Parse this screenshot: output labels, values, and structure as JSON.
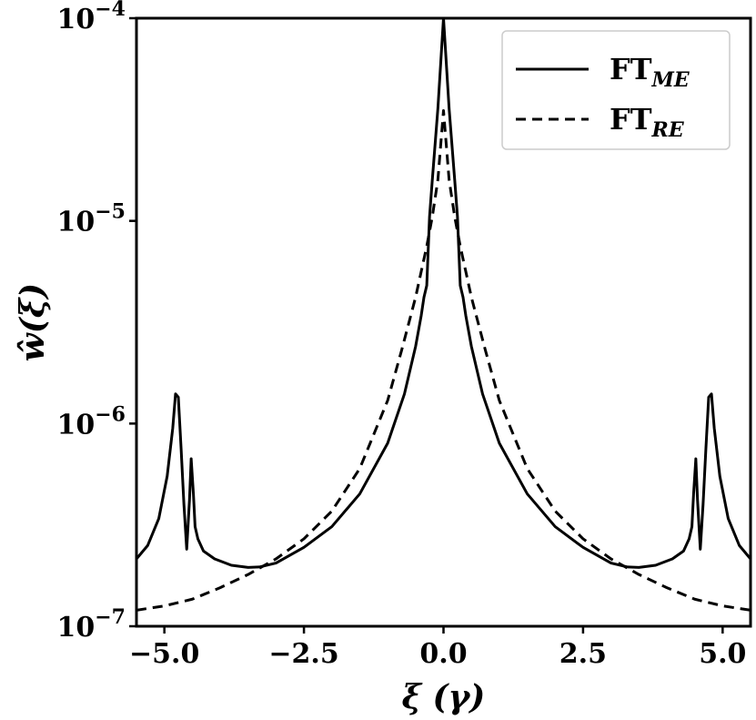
{
  "chart_data": {
    "type": "line",
    "title": "",
    "xlabel": "ξ (γ)",
    "ylabel": "ŵ(ξ)",
    "xlim": [
      -5.5,
      5.5
    ],
    "ylim": [
      1e-07,
      0.0001
    ],
    "yscale": "log",
    "grid": false,
    "legend_position": "top-right",
    "x_ticks": [
      -5.0,
      -2.5,
      0.0,
      2.5,
      5.0
    ],
    "x_tick_labels": [
      "−5.0",
      "−2.5",
      "0.0",
      "2.5",
      "5.0"
    ],
    "y_ticks": [
      1e-07,
      1e-06,
      1e-05,
      0.0001
    ],
    "y_tick_labels": [
      {
        "base": "10",
        "exp": "−7"
      },
      {
        "base": "10",
        "exp": "−6"
      },
      {
        "base": "10",
        "exp": "−5"
      },
      {
        "base": "10",
        "exp": "−4"
      }
    ],
    "series": [
      {
        "name": "FT_ME",
        "legend_main": "FT",
        "legend_sub": "ME",
        "style": "solid",
        "color": "#000000",
        "x": [
          -5.5,
          -5.3,
          -5.1,
          -4.95,
          -4.85,
          -4.8,
          -4.75,
          -4.7,
          -4.65,
          -4.6,
          -4.55,
          -4.52,
          -4.48,
          -4.45,
          -4.4,
          -4.3,
          -4.1,
          -3.8,
          -3.5,
          -3.3,
          -3.0,
          -2.5,
          -2.0,
          -1.5,
          -1.0,
          -0.7,
          -0.5,
          -0.4,
          -0.35,
          -0.3,
          -0.25,
          -0.2,
          -0.15,
          -0.1,
          -0.05,
          0.0,
          0.05,
          0.1,
          0.15,
          0.2,
          0.25,
          0.3,
          0.35,
          0.4,
          0.5,
          0.7,
          1.0,
          1.5,
          2.0,
          2.5,
          3.0,
          3.3,
          3.5,
          3.8,
          4.1,
          4.3,
          4.4,
          4.45,
          4.48,
          4.52,
          4.55,
          4.6,
          4.65,
          4.7,
          4.75,
          4.8,
          4.85,
          4.95,
          5.1,
          5.3,
          5.5
        ],
        "y": [
          2.15e-07,
          2.5e-07,
          3.4e-07,
          5.5e-07,
          9.5e-07,
          1.4e-06,
          1.35e-06,
          7.5e-07,
          4e-07,
          2.4e-07,
          4.2e-07,
          6.7e-07,
          4.5e-07,
          3.1e-07,
          2.7e-07,
          2.35e-07,
          2.15e-07,
          2e-07,
          1.95e-07,
          1.96e-07,
          2.05e-07,
          2.45e-07,
          3.1e-07,
          4.5e-07,
          8e-07,
          1.4e-06,
          2.4e-06,
          3.4e-06,
          4.2e-06,
          4.8e-06,
          1.05e-05,
          1.6e-05,
          2.4e-05,
          3.6e-05,
          6e-05,
          0.0001,
          6e-05,
          3.6e-05,
          2.4e-05,
          1.6e-05,
          1.05e-05,
          4.8e-06,
          4.2e-06,
          3.4e-06,
          2.4e-06,
          1.4e-06,
          8e-07,
          4.5e-07,
          3.1e-07,
          2.45e-07,
          2.05e-07,
          1.96e-07,
          1.95e-07,
          2e-07,
          2.15e-07,
          2.35e-07,
          2.7e-07,
          3.1e-07,
          4.5e-07,
          6.7e-07,
          4.2e-07,
          2.4e-07,
          4e-07,
          7.5e-07,
          1.35e-06,
          1.4e-06,
          9.5e-07,
          5.5e-07,
          3.4e-07,
          2.5e-07,
          2.15e-07
        ]
      },
      {
        "name": "FT_RE",
        "legend_main": "FT",
        "legend_sub": "RE",
        "style": "dashed",
        "color": "#000000",
        "x": [
          -5.5,
          -5.0,
          -4.5,
          -4.0,
          -3.5,
          -3.0,
          -2.5,
          -2.0,
          -1.5,
          -1.0,
          -0.75,
          -0.5,
          -0.3,
          -0.2,
          -0.1,
          0.0,
          0.1,
          0.2,
          0.3,
          0.5,
          0.75,
          1.0,
          1.5,
          2.0,
          2.5,
          3.0,
          3.5,
          4.0,
          4.5,
          5.0,
          5.5
        ],
        "y": [
          1.2e-07,
          1.26e-07,
          1.36e-07,
          1.55e-07,
          1.8e-07,
          2.15e-07,
          2.7e-07,
          3.7e-07,
          6e-07,
          1.3e-06,
          2.3e-06,
          4.2e-06,
          7.5e-06,
          1.05e-05,
          1.6e-05,
          3.5e-05,
          1.6e-05,
          1.05e-05,
          7.5e-06,
          4.2e-06,
          2.3e-06,
          1.3e-06,
          6e-07,
          3.7e-07,
          2.7e-07,
          2.15e-07,
          1.8e-07,
          1.55e-07,
          1.36e-07,
          1.26e-07,
          1.2e-07
        ]
      }
    ]
  }
}
